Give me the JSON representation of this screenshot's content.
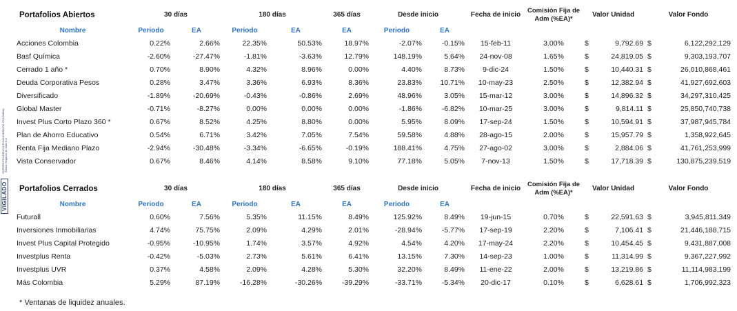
{
  "side_strip": {
    "vigilado": "VIGILADO",
    "superintendencia": "SUPERINTENDENCIA FINANCIERA DE COLOMBIA",
    "allianz": "Allianz Seguros de Vida S.A."
  },
  "headers": {
    "dias30": "30 días",
    "dias180": "180 días",
    "dias365": "365 días",
    "desde_inicio": "Desde inicio",
    "fecha_inicio": "Fecha de inicio",
    "comision": "Comisión Fija de Adm (%EA)*",
    "valor_unidad": "Valor Unidad",
    "valor_fondo": "Valor Fondo",
    "nombre": "Nombre",
    "periodo": "Periodo",
    "ea": "EA",
    "currency": "$"
  },
  "abiertos": {
    "title": "Portafolios Abiertos",
    "rows": [
      {
        "name": "Acciones Colombia",
        "p30": "0.22%",
        "ea30": "2.66%",
        "p180": "22.35%",
        "ea180": "50.53%",
        "ea365": "18.97%",
        "pdi": "-2.07%",
        "eadi": "-0.15%",
        "fecha": "15-feb-11",
        "com": "3.00%",
        "vu": "9,792.69",
        "vf": "6,122,292,129"
      },
      {
        "name": "Basf Química",
        "p30": "-2.60%",
        "ea30": "-27.47%",
        "p180": "-1.81%",
        "ea180": "-3.63%",
        "ea365": "12.79%",
        "pdi": "148.19%",
        "eadi": "5.64%",
        "fecha": "24-nov-08",
        "com": "1.65%",
        "vu": "24,819.05",
        "vf": "9,303,193,707"
      },
      {
        "name": "Cerrado 1 año *",
        "p30": "0.70%",
        "ea30": "8.90%",
        "p180": "4.32%",
        "ea180": "8.96%",
        "ea365": "0.00%",
        "pdi": "4.40%",
        "eadi": "8.73%",
        "fecha": "9-dic-24",
        "com": "1.50%",
        "vu": "10,440.31",
        "vf": "26,010,868,461"
      },
      {
        "name": "Deuda Corporativa Pesos",
        "p30": "0.28%",
        "ea30": "3.47%",
        "p180": "3.36%",
        "ea180": "6.93%",
        "ea365": "8.36%",
        "pdi": "23.83%",
        "eadi": "10.71%",
        "fecha": "10-may-23",
        "com": "2.50%",
        "vu": "12,382.94",
        "vf": "41,927,692,603"
      },
      {
        "name": "Diversificado",
        "p30": "-1.89%",
        "ea30": "-20.69%",
        "p180": "-0.43%",
        "ea180": "-0.86%",
        "ea365": "2.69%",
        "pdi": "48.96%",
        "eadi": "3.05%",
        "fecha": "15-mar-12",
        "com": "3.00%",
        "vu": "14,896.32",
        "vf": "34,297,310,425"
      },
      {
        "name": "Global Master",
        "p30": "-0.71%",
        "ea30": "-8.27%",
        "p180": "0.00%",
        "ea180": "0.00%",
        "ea365": "0.00%",
        "pdi": "-1.86%",
        "eadi": "-6.82%",
        "fecha": "10-mar-25",
        "com": "3.00%",
        "vu": "9,814.11",
        "vf": "25,850,740,738"
      },
      {
        "name": "Invest Plus Corto Plazo 360 *",
        "p30": "0.67%",
        "ea30": "8.52%",
        "p180": "4.25%",
        "ea180": "8.80%",
        "ea365": "0.00%",
        "pdi": "5.95%",
        "eadi": "8.09%",
        "fecha": "17-sep-24",
        "com": "1.50%",
        "vu": "10,594.91",
        "vf": "37,987,945,784"
      },
      {
        "name": "Plan de Ahorro Educativo",
        "p30": "0.54%",
        "ea30": "6.71%",
        "p180": "3.42%",
        "ea180": "7.05%",
        "ea365": "7.54%",
        "pdi": "59.58%",
        "eadi": "4.88%",
        "fecha": "28-ago-15",
        "com": "2.00%",
        "vu": "15,957.79",
        "vf": "1,358,922,645"
      },
      {
        "name": "Renta Fija Mediano Plazo",
        "p30": "-2.94%",
        "ea30": "-30.48%",
        "p180": "-3.34%",
        "ea180": "-6.65%",
        "ea365": "-0.19%",
        "pdi": "188.41%",
        "eadi": "4.75%",
        "fecha": "27-ago-02",
        "com": "3.00%",
        "vu": "2,884.06",
        "vf": "41,761,253,999"
      },
      {
        "name": "Vista Conservador",
        "p30": "0.67%",
        "ea30": "8.46%",
        "p180": "4.14%",
        "ea180": "8.58%",
        "ea365": "9.10%",
        "pdi": "77.18%",
        "eadi": "5.05%",
        "fecha": "7-nov-13",
        "com": "1.50%",
        "vu": "17,718.39",
        "vf": "130,875,239,519"
      }
    ]
  },
  "cerrados": {
    "title": "Portafolios Cerrados",
    "rows": [
      {
        "name": "Futurall",
        "p30": "0.60%",
        "ea30": "7.56%",
        "p180": "5.35%",
        "ea180": "11.15%",
        "ea365": "8.49%",
        "pdi": "125.92%",
        "eadi": "8.49%",
        "fecha": "19-jun-15",
        "com": "0.70%",
        "vu": "22,591.63",
        "vf": "3,945,811,349"
      },
      {
        "name": "Inversiones Inmobiliarias",
        "p30": "4.74%",
        "ea30": "75.75%",
        "p180": "2.09%",
        "ea180": "4.29%",
        "ea365": "2.01%",
        "pdi": "-28.94%",
        "eadi": "-5.77%",
        "fecha": "17-sep-19",
        "com": "2.20%",
        "vu": "7,106.41",
        "vf": "21,446,188,715"
      },
      {
        "name": "Invest Plus Capital Protegido",
        "p30": "-0.95%",
        "ea30": "-10.95%",
        "p180": "1.74%",
        "ea180": "3.57%",
        "ea365": "4.92%",
        "pdi": "4.54%",
        "eadi": "4.20%",
        "fecha": "17-may-24",
        "com": "2.20%",
        "vu": "10,454.45",
        "vf": "9,431,887,008"
      },
      {
        "name": "Investplus Renta",
        "p30": "-0.42%",
        "ea30": "-5.03%",
        "p180": "2.73%",
        "ea180": "5.61%",
        "ea365": "6.41%",
        "pdi": "13.15%",
        "eadi": "7.30%",
        "fecha": "14-sep-23",
        "com": "1.00%",
        "vu": "11,314.99",
        "vf": "9,367,227,992"
      },
      {
        "name": "Investplus UVR",
        "p30": "0.37%",
        "ea30": "4.58%",
        "p180": "2.09%",
        "ea180": "4.28%",
        "ea365": "5.30%",
        "pdi": "32.20%",
        "eadi": "8.49%",
        "fecha": "11-ene-22",
        "com": "2.00%",
        "vu": "13,219.86",
        "vf": "11,114,983,199"
      },
      {
        "name": "Más Colombia",
        "p30": "5.29%",
        "ea30": "87.19%",
        "p180": "-16.28%",
        "ea180": "-30.26%",
        "ea365": "-39.29%",
        "pdi": "-33.71%",
        "eadi": "-5.34%",
        "fecha": "20-dic-17",
        "com": "0.10%",
        "vu": "6,628.61",
        "vf": "1,706,992,323"
      }
    ]
  },
  "footnote": "* Ventanas de liquidez anuales."
}
